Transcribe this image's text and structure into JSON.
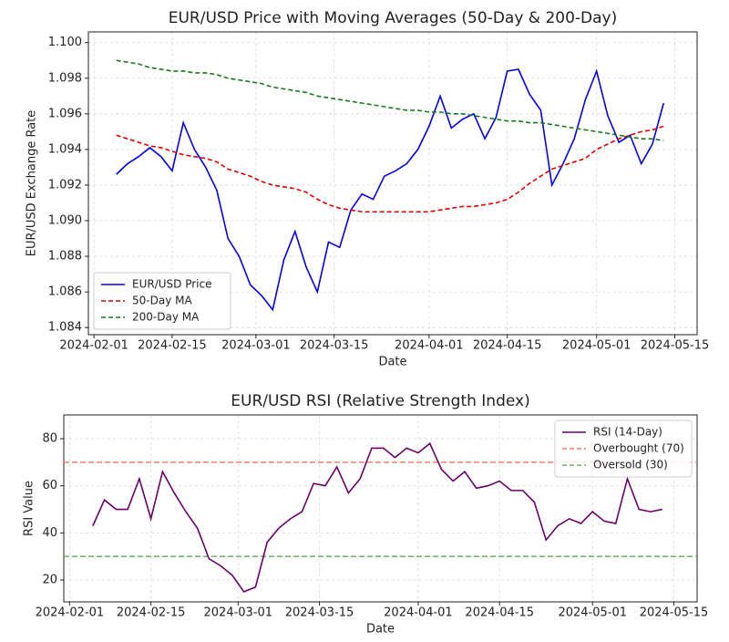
{
  "chart_data": [
    {
      "type": "line",
      "title": "EUR/USD Price with Moving Averages (50-Day & 200-Day)",
      "x_label": "Date",
      "y_label": "EUR/USD Exchange Rate",
      "x": [
        "2024-02-05",
        "2024-02-07",
        "2024-02-09",
        "2024-02-11",
        "2024-02-13",
        "2024-02-15",
        "2024-02-17",
        "2024-02-19",
        "2024-02-21",
        "2024-02-23",
        "2024-02-25",
        "2024-02-27",
        "2024-02-29",
        "2024-03-02",
        "2024-03-04",
        "2024-03-06",
        "2024-03-08",
        "2024-03-10",
        "2024-03-12",
        "2024-03-14",
        "2024-03-16",
        "2024-03-18",
        "2024-03-20",
        "2024-03-22",
        "2024-03-24",
        "2024-03-26",
        "2024-03-28",
        "2024-03-30",
        "2024-04-01",
        "2024-04-03",
        "2024-04-05",
        "2024-04-07",
        "2024-04-09",
        "2024-04-11",
        "2024-04-13",
        "2024-04-15",
        "2024-04-17",
        "2024-04-19",
        "2024-04-21",
        "2024-04-23",
        "2024-04-25",
        "2024-04-27",
        "2024-04-29",
        "2024-05-01",
        "2024-05-03",
        "2024-05-05",
        "2024-05-07",
        "2024-05-09",
        "2024-05-11",
        "2024-05-13"
      ],
      "series": [
        {
          "name": "EUR/USD Price",
          "color": "#0000ee",
          "dash": false,
          "values": [
            1.0926,
            1.0932,
            1.0936,
            1.0941,
            1.0936,
            1.0928,
            1.0955,
            1.094,
            1.093,
            1.0917,
            1.089,
            1.088,
            1.0864,
            1.0858,
            1.085,
            1.0878,
            1.0894,
            1.0874,
            1.086,
            1.0888,
            1.0885,
            1.0906,
            1.0915,
            1.0912,
            1.0925,
            1.0928,
            1.0932,
            1.094,
            1.0953,
            1.097,
            1.0952,
            1.0957,
            1.096,
            1.0946,
            1.0958,
            1.0984,
            1.0985,
            1.0971,
            1.0962,
            1.092,
            1.0932,
            1.0946,
            1.0968,
            1.0984,
            1.0959,
            1.0944,
            1.0948,
            1.0932,
            1.0943,
            1.0966
          ]
        },
        {
          "name": "50-Day MA",
          "color": "#e00000",
          "dash": true,
          "values": [
            1.0948,
            1.0946,
            1.0944,
            1.0942,
            1.0941,
            1.0939,
            1.0937,
            1.0936,
            1.0935,
            1.0933,
            1.0929,
            1.0927,
            1.0925,
            1.0922,
            1.092,
            1.0919,
            1.0918,
            1.0916,
            1.0912,
            1.0909,
            1.0907,
            1.0906,
            1.0905,
            1.0905,
            1.0905,
            1.0905,
            1.0905,
            1.0905,
            1.0905,
            1.0906,
            1.0907,
            1.0908,
            1.0908,
            1.0909,
            1.091,
            1.0912,
            1.0916,
            1.0921,
            1.0925,
            1.0929,
            1.0931,
            1.0933,
            1.0935,
            1.094,
            1.0943,
            1.0946,
            1.0948,
            1.095,
            1.0951,
            1.0953
          ]
        },
        {
          "name": "200-Day MA",
          "color": "#1a7a1a",
          "dash": true,
          "values": [
            1.099,
            1.0989,
            1.0988,
            1.0986,
            1.0985,
            1.0984,
            1.0984,
            1.0983,
            1.0983,
            1.0982,
            1.098,
            1.0979,
            1.0978,
            1.0977,
            1.0975,
            1.0974,
            1.0973,
            1.0972,
            1.097,
            1.0969,
            1.0968,
            1.0967,
            1.0966,
            1.0965,
            1.0964,
            1.0963,
            1.0962,
            1.0962,
            1.0961,
            1.0961,
            1.096,
            1.096,
            1.0959,
            1.0958,
            1.0957,
            1.0956,
            1.0956,
            1.0955,
            1.0955,
            1.0954,
            1.0953,
            1.0952,
            1.0951,
            1.095,
            1.0949,
            1.0948,
            1.0947,
            1.0946,
            1.0946,
            1.0945
          ]
        }
      ],
      "xlim": [
        "2024-01-31",
        "2024-05-19"
      ],
      "xticks": [
        "2024-02-01",
        "2024-02-15",
        "2024-03-01",
        "2024-03-15",
        "2024-04-01",
        "2024-04-15",
        "2024-05-01",
        "2024-05-15"
      ],
      "ylim": [
        1.0836,
        1.1006
      ],
      "yticks": [
        {
          "value": 1.084,
          "label": "1.084"
        },
        {
          "value": 1.086,
          "label": "1.086"
        },
        {
          "value": 1.088,
          "label": "1.088"
        },
        {
          "value": 1.09,
          "label": "1.090"
        },
        {
          "value": 1.092,
          "label": "1.092"
        },
        {
          "value": 1.094,
          "label": "1.094"
        },
        {
          "value": 1.096,
          "label": "1.096"
        },
        {
          "value": 1.098,
          "label": "1.098"
        },
        {
          "value": 1.1,
          "label": "1.100"
        }
      ],
      "grid": true,
      "legend": "lower left"
    },
    {
      "type": "line",
      "title": "EUR/USD RSI (Relative Strength Index)",
      "x_label": "Date",
      "y_label": "RSI Value",
      "x": [
        "2024-02-05",
        "2024-02-07",
        "2024-02-09",
        "2024-02-11",
        "2024-02-13",
        "2024-02-15",
        "2024-02-17",
        "2024-02-19",
        "2024-02-21",
        "2024-02-23",
        "2024-02-25",
        "2024-02-27",
        "2024-02-29",
        "2024-03-02",
        "2024-03-04",
        "2024-03-06",
        "2024-03-08",
        "2024-03-10",
        "2024-03-12",
        "2024-03-14",
        "2024-03-16",
        "2024-03-18",
        "2024-03-20",
        "2024-03-22",
        "2024-03-24",
        "2024-03-26",
        "2024-03-28",
        "2024-03-30",
        "2024-04-01",
        "2024-04-03",
        "2024-04-05",
        "2024-04-07",
        "2024-04-09",
        "2024-04-11",
        "2024-04-13",
        "2024-04-15",
        "2024-04-17",
        "2024-04-19",
        "2024-04-21",
        "2024-04-23",
        "2024-04-25",
        "2024-04-27",
        "2024-04-29",
        "2024-05-01",
        "2024-05-03",
        "2024-05-05",
        "2024-05-07",
        "2024-05-09",
        "2024-05-11",
        "2024-05-13"
      ],
      "series": [
        {
          "name": "RSI (14-Day)",
          "color": "#6a006a",
          "dash": false,
          "values": [
            43,
            54,
            50,
            50,
            63,
            46,
            66,
            57,
            49,
            42,
            29,
            26,
            22,
            15,
            17,
            36,
            42,
            46,
            49,
            61,
            60,
            68,
            57,
            63,
            76,
            76,
            72,
            76,
            74,
            78,
            67,
            62,
            66,
            59,
            60,
            62,
            58,
            58,
            53,
            37,
            43,
            46,
            44,
            49,
            45,
            44,
            63,
            50,
            49,
            50
          ]
        }
      ],
      "hlines": [
        {
          "name": "Overbought (70)",
          "value": 70,
          "color": "#f08070"
        },
        {
          "name": "Oversold (30)",
          "value": 30,
          "color": "#6ab06a"
        }
      ],
      "xlim": [
        "2024-01-31",
        "2024-05-19"
      ],
      "xticks": [
        "2024-02-01",
        "2024-02-15",
        "2024-03-01",
        "2024-03-15",
        "2024-04-01",
        "2024-04-15",
        "2024-05-01",
        "2024-05-15"
      ],
      "ylim": [
        10.7,
        90.1
      ],
      "yticks": [
        20,
        40,
        60,
        80
      ],
      "grid": true,
      "legend": "upper right"
    }
  ]
}
